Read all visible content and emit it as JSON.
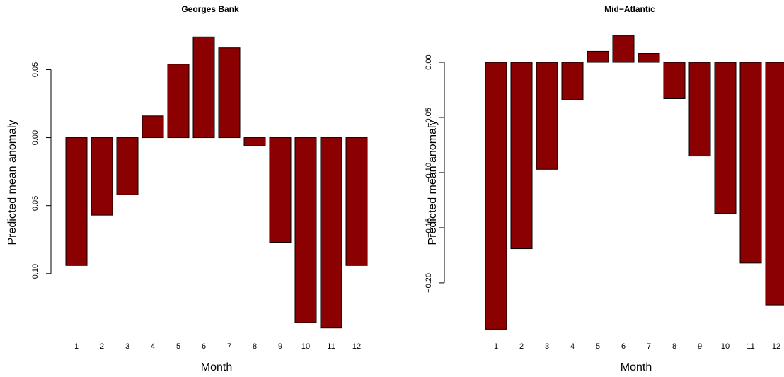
{
  "chart_data": [
    {
      "type": "bar",
      "title": "Georges Bank",
      "x_label": "Month",
      "y_label": "Predicted mean anomaly",
      "categories": [
        "1",
        "2",
        "3",
        "4",
        "5",
        "6",
        "7",
        "8",
        "9",
        "10",
        "11",
        "12"
      ],
      "values": [
        -0.094,
        -0.057,
        -0.042,
        0.016,
        0.054,
        0.074,
        0.066,
        -0.006,
        -0.077,
        -0.136,
        -0.14,
        -0.094
      ],
      "color": "#8b0000",
      "ylim": [
        -0.149,
        0.083
      ],
      "yticks": [
        {
          "value": -0.1,
          "label": "−0.10"
        },
        {
          "value": -0.05,
          "label": "−0.05"
        },
        {
          "value": 0,
          "label": "0.00"
        },
        0.05
      ]
    },
    {
      "type": "bar",
      "title": "Mid−Atlantic",
      "x_label": "Month",
      "y_label": "Predicted mean anomaly",
      "categories": [
        "1",
        "2",
        "3",
        "4",
        "5",
        "6",
        "7",
        "8",
        "9",
        "10",
        "11",
        "12"
      ],
      "values": [
        -0.242,
        -0.169,
        -0.097,
        -0.034,
        0.01,
        0.024,
        0.008,
        -0.033,
        -0.085,
        -0.137,
        -0.182,
        -0.22
      ],
      "color": "#8b0000",
      "ylim": [
        -0.252,
        0.034
      ],
      "yticks": [
        {
          "value": -0.2,
          "label": "−0.20"
        },
        {
          "value": -0.15,
          "label": "−0.15"
        },
        {
          "value": -0.1,
          "label": "−0.10"
        },
        {
          "value": -0.05,
          "label": "−0.05"
        },
        {
          "value": 0,
          "label": "0.00"
        }
      ]
    }
  ]
}
